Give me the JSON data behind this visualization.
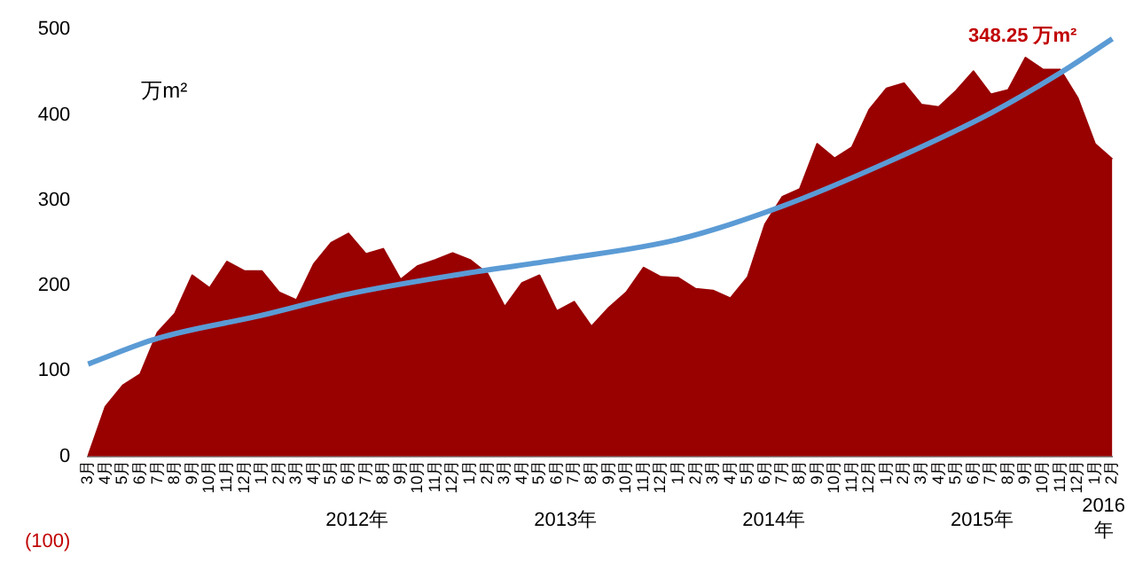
{
  "chart_data": {
    "type": "area",
    "ylabel": "万m²",
    "categories": [
      "3月",
      "4月",
      "5月",
      "6月",
      "7月",
      "8月",
      "9月",
      "10月",
      "11月",
      "12月",
      "1月",
      "2月",
      "3月",
      "4月",
      "5月",
      "6月",
      "7月",
      "8月",
      "9月",
      "10月",
      "11月",
      "12月",
      "1月",
      "2月",
      "3月",
      "4月",
      "5月",
      "6月",
      "7月",
      "8月",
      "9月",
      "10月",
      "11月",
      "12月",
      "1月",
      "2月",
      "3月",
      "4月",
      "5月",
      "6月",
      "7月",
      "8月",
      "9月",
      "10月",
      "11月",
      "12月",
      "1月",
      "2月",
      "3月",
      "4月",
      "5月",
      "6月",
      "7月",
      "8月",
      "9月",
      "10月",
      "11月",
      "12月",
      "1月",
      "2月"
    ],
    "series": [
      {
        "color": "#990000",
        "values": [
          0,
          58,
          83,
          96,
          145,
          167,
          212,
          197,
          228,
          217,
          217,
          192,
          183,
          225,
          250,
          261,
          237,
          243,
          207,
          223,
          230,
          238,
          230,
          214,
          175,
          203,
          212,
          170,
          181,
          152,
          174,
          192,
          221,
          210,
          209,
          196,
          194,
          185,
          210,
          272,
          304,
          313,
          366,
          349,
          362,
          406,
          431,
          437,
          412,
          409,
          428,
          451,
          424,
          429,
          467,
          453,
          453,
          420,
          366,
          348
        ]
      },
      {
        "type": "line",
        "color": "#5b9bd5",
        "values": [
          108,
          null,
          null,
          null,
          138,
          null,
          null,
          null,
          null,
          null,
          165,
          null,
          null,
          null,
          null,
          190,
          null,
          null,
          null,
          null,
          null,
          null,
          215,
          null,
          null,
          null,
          null,
          230,
          null,
          null,
          null,
          null,
          null,
          null,
          254,
          null,
          null,
          null,
          null,
          null,
          293,
          null,
          null,
          null,
          null,
          null,
          344,
          null,
          null,
          null,
          null,
          null,
          402,
          null,
          null,
          null,
          449,
          null,
          null,
          489
        ]
      }
    ],
    "ylim": [
      -100,
      500
    ],
    "yticks": [
      {
        "value": -100,
        "label": "(100)"
      },
      0,
      100,
      200,
      300,
      400,
      500
    ],
    "grid": false,
    "legend": false,
    "marker": "none",
    "annotations": [
      "348.25 万m²",
      "2012年",
      "2013年",
      "2014年",
      "2015年",
      "2016年"
    ]
  }
}
